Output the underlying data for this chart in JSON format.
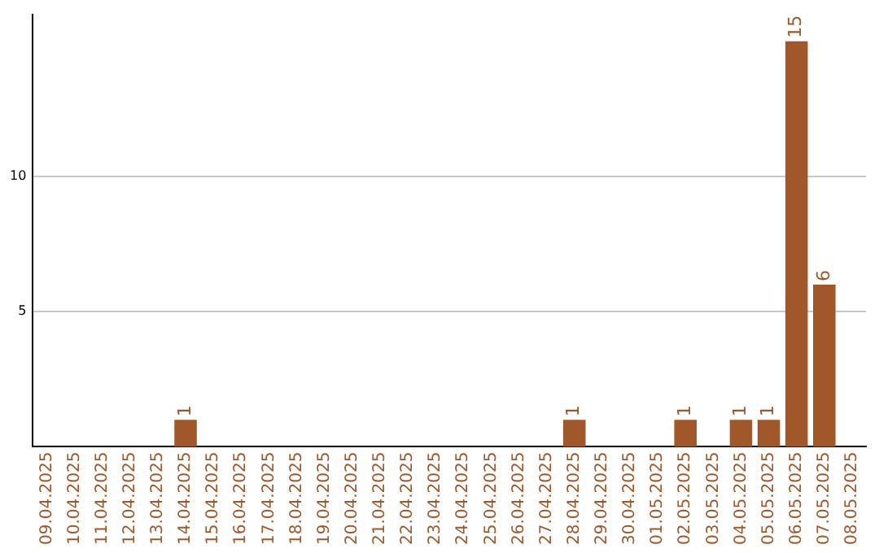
{
  "chart_data": {
    "type": "bar",
    "categories": [
      "09.04.2025",
      "10.04.2025",
      "11.04.2025",
      "12.04.2025",
      "13.04.2025",
      "14.04.2025",
      "15.04.2025",
      "16.04.2025",
      "17.04.2025",
      "18.04.2025",
      "19.04.2025",
      "20.04.2025",
      "21.04.2025",
      "22.04.2025",
      "23.04.2025",
      "24.04.2025",
      "25.04.2025",
      "26.04.2025",
      "27.04.2025",
      "28.04.2025",
      "29.04.2025",
      "30.04.2025",
      "01.05.2025",
      "02.05.2025",
      "03.05.2025",
      "04.05.2025",
      "05.05.2025",
      "06.05.2025",
      "07.05.2025",
      "08.05.2025"
    ],
    "values": [
      0,
      0,
      0,
      0,
      0,
      1,
      0,
      0,
      0,
      0,
      0,
      0,
      0,
      0,
      0,
      0,
      0,
      0,
      0,
      1,
      0,
      0,
      0,
      1,
      0,
      1,
      1,
      15,
      6,
      0
    ],
    "value_labels": [
      null,
      null,
      null,
      null,
      null,
      "1",
      null,
      null,
      null,
      null,
      null,
      null,
      null,
      null,
      null,
      null,
      null,
      null,
      null,
      "1",
      null,
      null,
      null,
      "1",
      null,
      "1",
      "1",
      "15",
      "6",
      null
    ],
    "color": "#a0572a",
    "ylim": [
      0,
      16
    ],
    "yticks": [
      5,
      10
    ],
    "grid": "y",
    "legend": false
  }
}
